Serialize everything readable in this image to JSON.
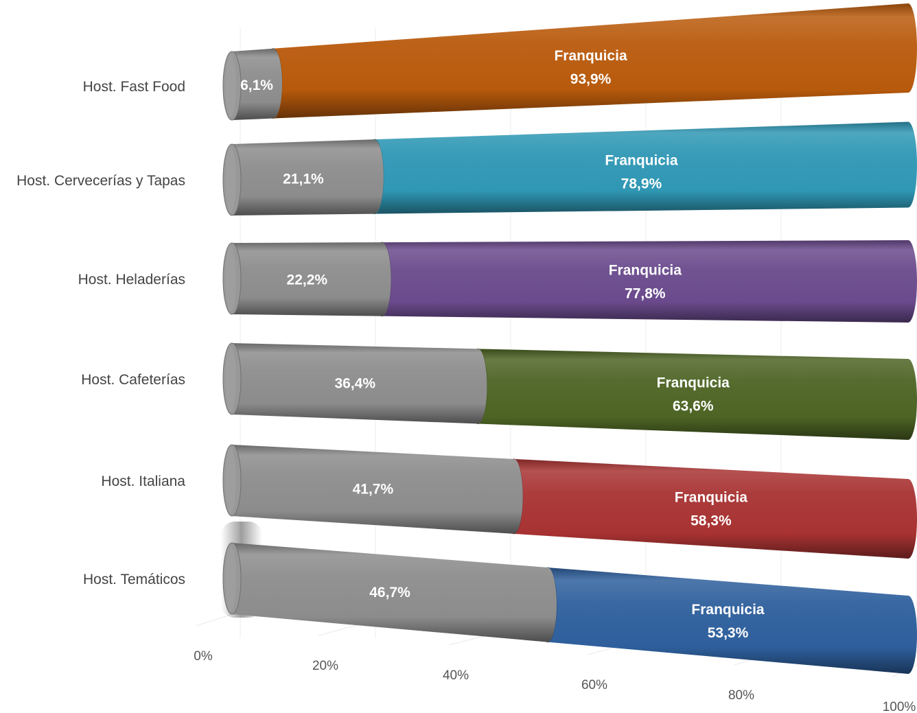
{
  "chart_data": {
    "type": "bar",
    "orientation": "horizontal",
    "stacked": "100%",
    "style": "3d-cylinder",
    "categories": [
      "Host. Fast Food",
      "Host. Cervecerías y Tapas",
      "Host. Heladerías",
      "Host. Cafeterías",
      "Host. Italiana",
      "Host. Temáticos"
    ],
    "series": [
      {
        "values": [
          6.1,
          21.1,
          22.2,
          36.4,
          41.7,
          46.7
        ],
        "labels": [
          "6,1%",
          "21,1%",
          "22,2%",
          "36,4%",
          "41,7%",
          "46,7%"
        ],
        "color": "#8c8c8c"
      },
      {
        "name": "Franquicia",
        "values": [
          93.9,
          78.9,
          77.8,
          63.6,
          58.3,
          53.3
        ],
        "labels": [
          "93,9%",
          "78,9%",
          "77,8%",
          "63,6%",
          "58,3%",
          "53,3%"
        ],
        "colors": [
          "#b85a0c",
          "#2f97b4",
          "#6a4a8c",
          "#4d6424",
          "#a83232",
          "#2e5f9c"
        ]
      }
    ],
    "x_ticks": [
      "0%",
      "20%",
      "40%",
      "60%",
      "80%",
      "100%"
    ],
    "xlim": [
      0,
      100
    ],
    "legend": "none"
  }
}
